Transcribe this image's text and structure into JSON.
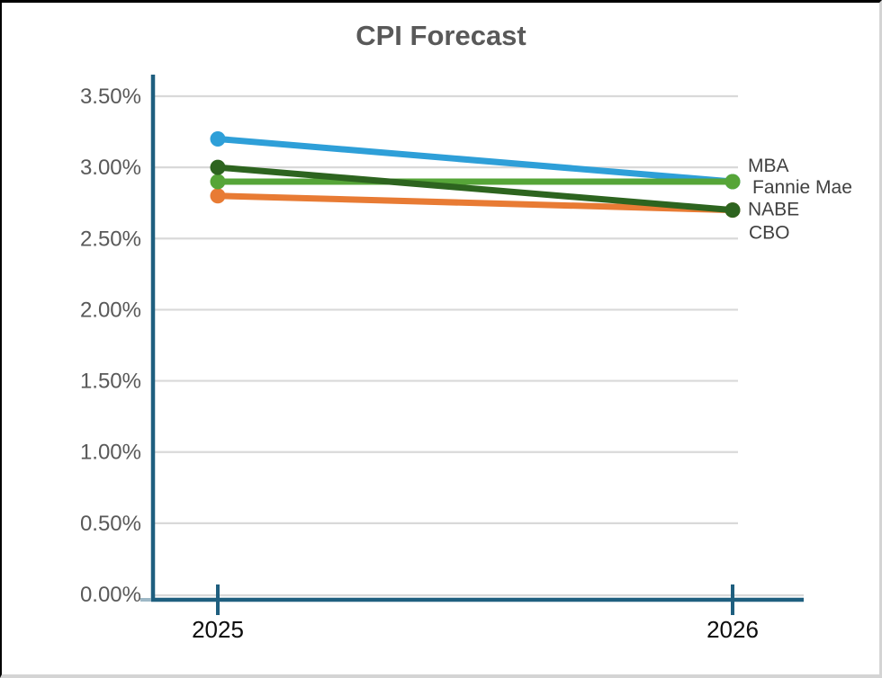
{
  "chart_data": {
    "type": "line",
    "title": "CPI Forecast",
    "categories": [
      "2025",
      "2026"
    ],
    "series": [
      {
        "name": "MBA",
        "values": [
          3.2,
          2.9
        ],
        "color": "#2E9FD8"
      },
      {
        "name": "Fannie Mae",
        "values": [
          2.9,
          2.9
        ],
        "color": "#56A538"
      },
      {
        "name": "NABE",
        "values": [
          3.0,
          2.7
        ],
        "color": "#2D641F"
      },
      {
        "name": "CBO",
        "values": [
          2.8,
          2.7
        ],
        "color": "#E87B34"
      }
    ],
    "xlabel": "",
    "ylabel": "",
    "ylim": [
      0,
      3.5
    ],
    "y_ticks": [
      "3.50%",
      "3.00%",
      "2.50%",
      "2.00%",
      "1.50%",
      "1.00%",
      "0.50%",
      "0.00%"
    ],
    "y_tick_values": [
      3.5,
      3.0,
      2.5,
      2.0,
      1.5,
      1.0,
      0.5,
      0.0
    ],
    "grid": true,
    "legend_position": "right-end-labels",
    "colors": {
      "axis": "#1F5F7F",
      "axis_minor_tick": "#9DB8C6",
      "gridline": "#D9D9D9",
      "title": "#595959",
      "y_tick_label": "#595959",
      "x_tick_label": "#0c0c0c",
      "series_label": "#404040",
      "background": "#FFFFFF"
    }
  }
}
